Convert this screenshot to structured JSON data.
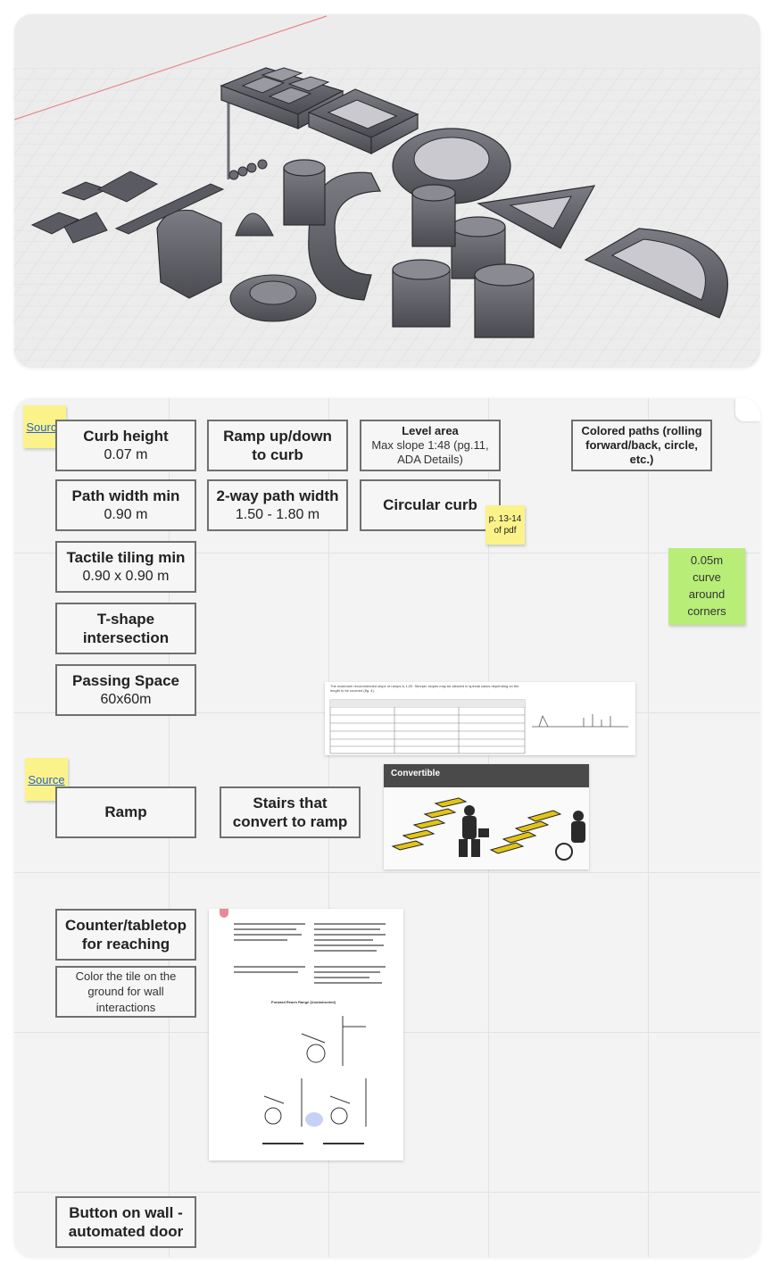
{
  "viewport": {
    "icon": "3d-model-viewport",
    "background": "#ececed"
  },
  "board": {
    "cards": {
      "curb_height": {
        "title": "Curb height",
        "sub": "0.07 m"
      },
      "ramp_updown": {
        "title": "Ramp up/down to curb"
      },
      "level_area": {
        "title": "Level area",
        "sub": "Max slope 1:48 (pg.11, ADA Details)"
      },
      "colored_paths": {
        "title": "Colored paths (rolling forward/back, circle, etc.)"
      },
      "path_width": {
        "title": "Path width min",
        "sub": "0.90 m"
      },
      "two_way": {
        "title": "2-way path width",
        "sub": "1.50 - 1.80 m"
      },
      "circular_curb": {
        "title": "Circular curb"
      },
      "tactile": {
        "title": "Tactile tiling min",
        "sub": "0.90 x 0.90 m"
      },
      "tshape": {
        "title": "T-shape intersection"
      },
      "passing": {
        "title": "Passing Space",
        "sub": "60x60m"
      },
      "ramp": {
        "title": "Ramp"
      },
      "stairs": {
        "title": "Stairs that convert to ramp"
      },
      "counter": {
        "title": "Counter/tabletop for reaching"
      },
      "color_tile": {
        "sub": "Color the tile on the ground for wall interactions"
      },
      "button_wall": {
        "title": "Button on wall - automated door"
      }
    },
    "stickies": {
      "source1": "Source",
      "source2": "Source",
      "pdf_note": "p. 13-14 of pdf",
      "green_note": "0.05m curve around corners"
    },
    "images": {
      "ramp_table_doc": "The maximum recommended slope of ramps is 1:20. Steeper slopes may be allowed in special cases depending on the length to be covered (fig. 4).",
      "convertible_label": "Convertible",
      "reach_doc_title": "Forward Reach Range (Unobstructed)"
    },
    "colors": {
      "sticky_yellow": "#fbf38a",
      "sticky_green": "#b8ed78",
      "link": "#2a63c8"
    }
  }
}
